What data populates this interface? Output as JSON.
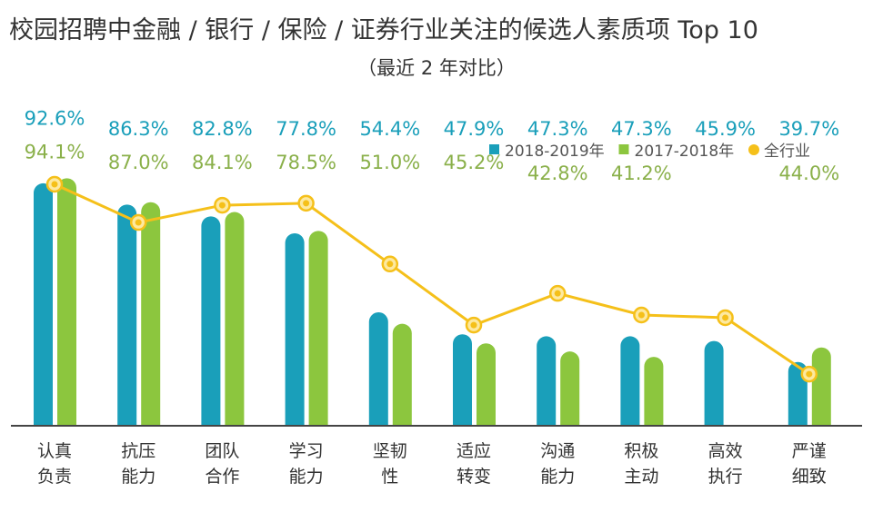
{
  "chart_data": {
    "type": "bar",
    "title": "校园招聘中金融 / 银行 / 保险 / 证券行业关注的候选人素质项 Top 10",
    "subtitle": "（最近 2 年对比）",
    "categories": [
      [
        "认真",
        "负责"
      ],
      [
        "抗压",
        "能力"
      ],
      [
        "团队",
        "合作"
      ],
      [
        "学习",
        "能力"
      ],
      [
        "坚韧",
        "性"
      ],
      [
        "适应",
        "转变"
      ],
      [
        "沟通",
        "能力"
      ],
      [
        "积极",
        "主动"
      ],
      [
        "高效",
        "执行"
      ],
      [
        "严谨",
        "细致"
      ]
    ],
    "series": [
      {
        "name": "2018-2019年",
        "type": "bar",
        "color": "#1a9fba",
        "values": [
          92.6,
          86.3,
          82.8,
          77.8,
          54.4,
          47.9,
          47.3,
          47.3,
          45.9,
          39.7
        ],
        "labels": [
          "92.6%",
          "86.3%",
          "82.8%",
          "77.8%",
          "54.4%",
          "47.9%",
          "47.3%",
          "47.3%",
          "45.9%",
          "39.7%"
        ]
      },
      {
        "name": "2017-2018年",
        "type": "bar",
        "color": "#8cc63e",
        "values": [
          94.1,
          87.0,
          84.1,
          78.5,
          51.0,
          45.2,
          42.8,
          41.2,
          null,
          44.0
        ],
        "labels": [
          "94.1%",
          "87.0%",
          "84.1%",
          "78.5%",
          "51.0%",
          "45.2%",
          "42.8%",
          "41.2%",
          "",
          "44.0%"
        ]
      },
      {
        "name": "全行业",
        "type": "line",
        "color": "#f5c01a",
        "values": [
          92.3,
          81.0,
          86.1,
          86.7,
          68.7,
          50.6,
          60.0,
          53.6,
          52.8,
          36.1
        ]
      }
    ],
    "ylim": [
      20.8,
      100
    ],
    "grid": false,
    "legend": "top-right"
  }
}
